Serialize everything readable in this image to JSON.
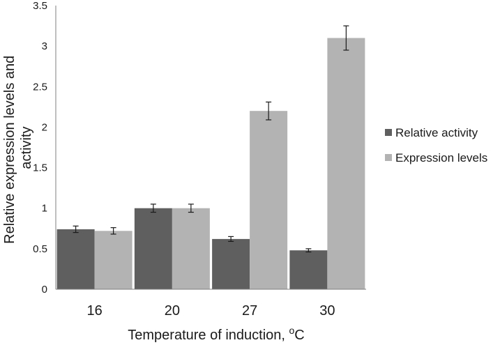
{
  "chart_data": {
    "type": "bar",
    "categories": [
      "16",
      "20",
      "27",
      "30"
    ],
    "series": [
      {
        "name": "Relative activity",
        "color": "#5f5f5f",
        "values": [
          0.74,
          1.0,
          0.62,
          0.48
        ],
        "errors": [
          0.04,
          0.05,
          0.03,
          0.02
        ]
      },
      {
        "name": "Expression levels",
        "color": "#b3b3b3",
        "values": [
          0.72,
          1.0,
          2.2,
          3.1
        ],
        "errors": [
          0.04,
          0.05,
          0.11,
          0.15
        ]
      }
    ],
    "ylim": [
      0,
      3.5
    ],
    "yticks": [
      "0",
      "0.5",
      "1",
      "1.5",
      "2",
      "2.5",
      "3",
      "3.5"
    ],
    "xlabel": {
      "main": "Temperature of induction, ",
      "superscript": "o",
      "unit": "C"
    },
    "ylabel_lines": [
      "Relative expression levels and",
      "activity"
    ],
    "legend_position": "right",
    "grid": false
  }
}
